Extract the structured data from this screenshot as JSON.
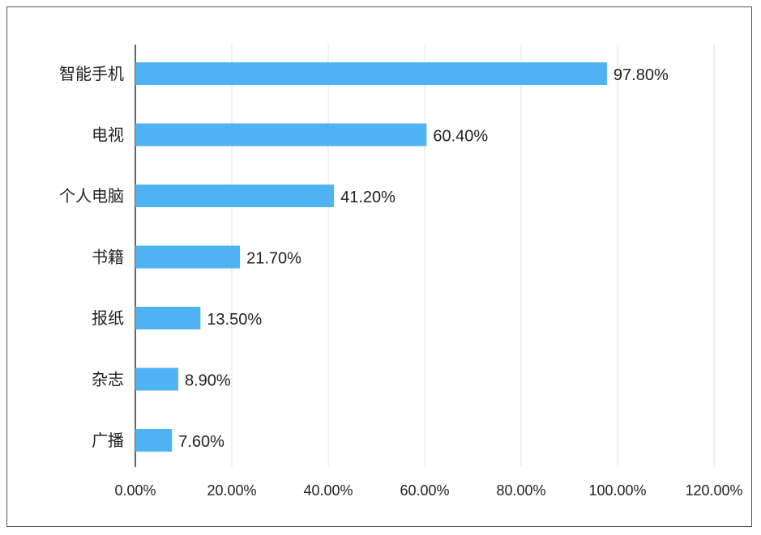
{
  "chart_data": {
    "type": "bar",
    "orientation": "horizontal",
    "categories": [
      "智能手机",
      "电视",
      "个人电脑",
      "书籍",
      "报纸",
      "杂志",
      "广播"
    ],
    "values": [
      97.8,
      60.4,
      41.2,
      21.7,
      13.5,
      8.9,
      7.6
    ],
    "value_labels": [
      "97.80%",
      "60.40%",
      "41.20%",
      "21.70%",
      "13.50%",
      "8.90%",
      "7.60%"
    ],
    "xlim": [
      0,
      120
    ],
    "x_ticks": [
      0,
      20,
      40,
      60,
      80,
      100,
      120
    ],
    "x_tick_labels": [
      "0.00%",
      "20.00%",
      "40.00%",
      "60.00%",
      "80.00%",
      "100.00%",
      "120.00%"
    ],
    "title": "",
    "xlabel": "",
    "ylabel": "",
    "grid": "vertical",
    "legend": "none",
    "bar_color": "#4fb3f3",
    "grid_color": "#e3e3e3",
    "axis_color": "#333333"
  }
}
